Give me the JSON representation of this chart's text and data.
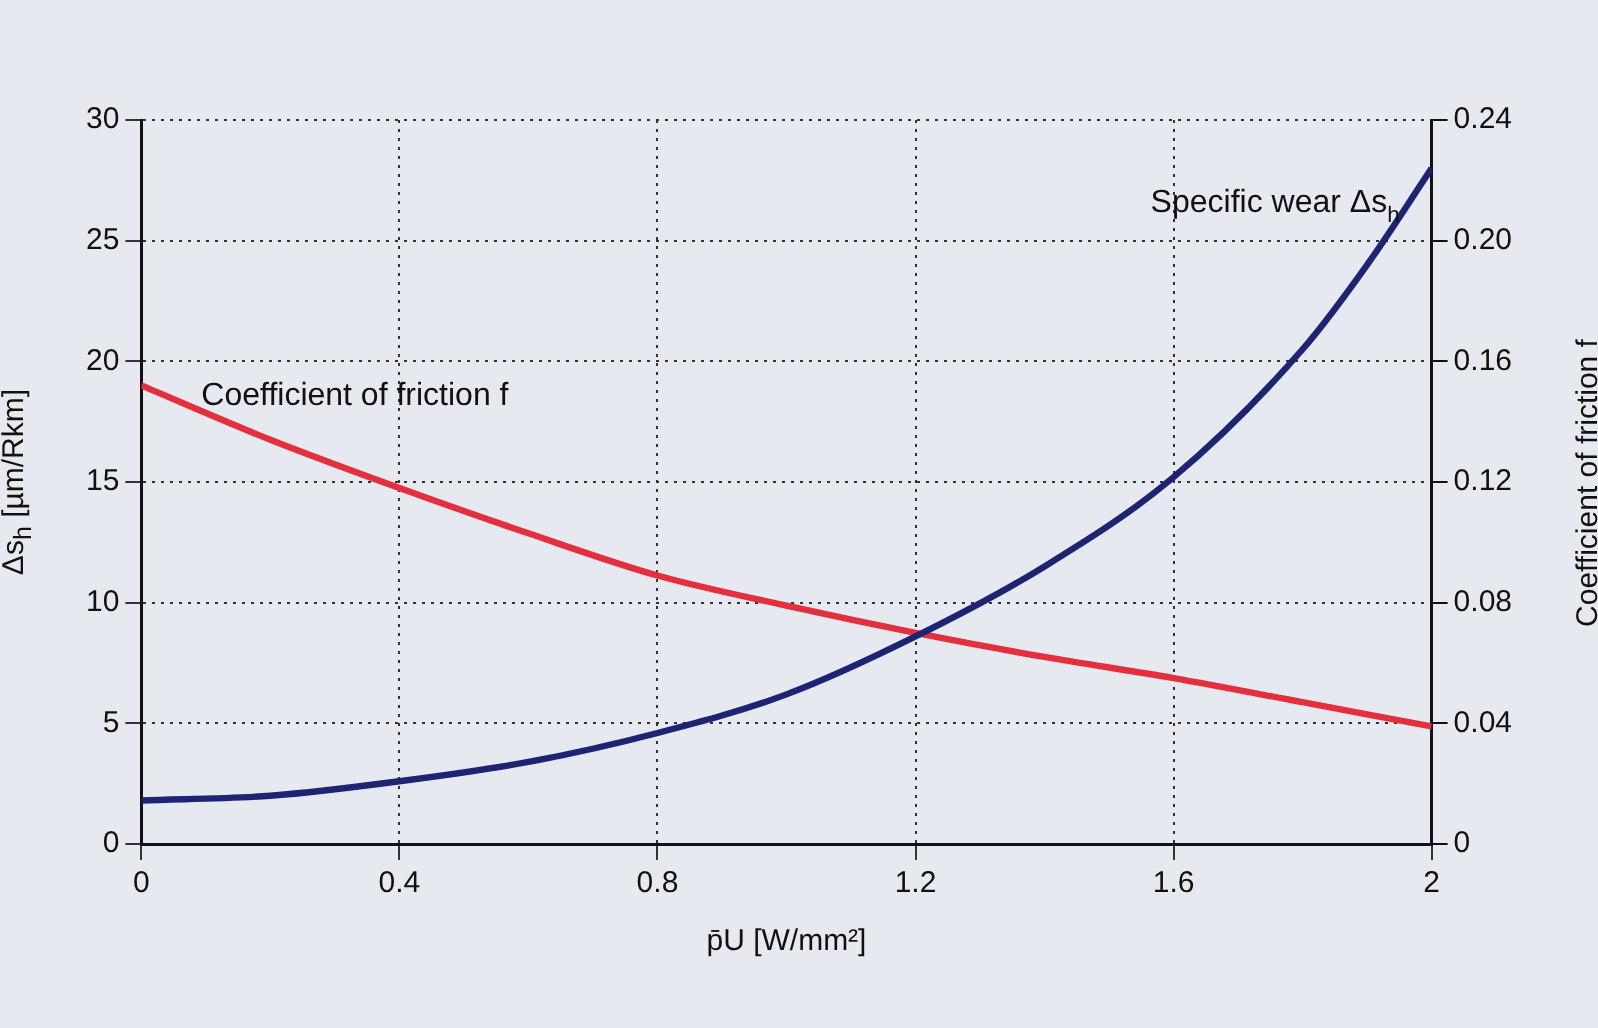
{
  "chart_data": {
    "type": "line",
    "xlabel": "p̄U [W/mm²]",
    "ylabel": "Δs$_{h}$ [µm/Rkm]",
    "y2label": "Coefficient of friction f",
    "x": [
      0,
      0.2,
      0.4,
      0.6,
      0.8,
      1.0,
      1.2,
      1.4,
      1.6,
      1.8,
      1.9,
      2.0
    ],
    "series": [
      {
        "name": "Specific wear Δs$_{h}$",
        "color": "#1c2474",
        "values": [
          1.8,
          2.0,
          2.6,
          3.4,
          4.6,
          6.2,
          8.6,
          11.5,
          15.2,
          20.5,
          24,
          28
        ]
      },
      {
        "name": "Coefficient of friction f",
        "color": "#e4303e",
        "axis": "y2",
        "values": [
          0.152,
          0.134,
          0.118,
          0.103,
          0.089,
          0.079,
          0.07,
          0.062,
          0.055,
          0.047,
          0.043,
          0.039
        ]
      }
    ],
    "xlim": [
      0,
      2
    ],
    "xticks": [
      0,
      0.4,
      0.8,
      1.2,
      1.6,
      2
    ],
    "ylim": [
      0,
      30
    ],
    "yticks": [
      0,
      5,
      10,
      15,
      20,
      25,
      30
    ],
    "y2lim": [
      0,
      0.24
    ],
    "y2ticks": [
      0,
      0.04,
      0.08,
      0.12,
      0.16,
      {
        "value": 0.2,
        "label": "0.20"
      },
      0.24
    ],
    "grid": true,
    "legend": false,
    "marker": "none",
    "line_style": "solid"
  }
}
